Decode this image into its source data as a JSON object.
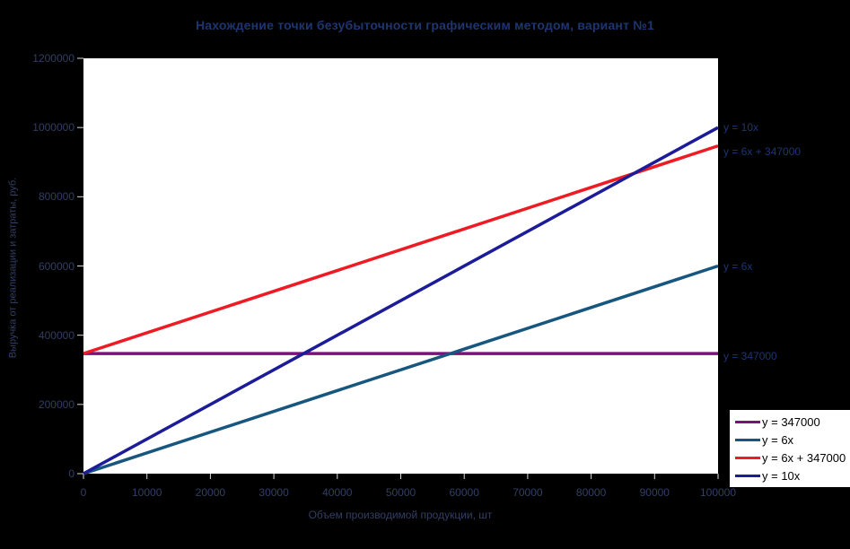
{
  "chart_data": {
    "type": "line",
    "title": "Нахождение точки безубыточности графическим методом, вариант №1",
    "xlabel": "Объем производимой продукции, шт",
    "ylabel": "Выручка от реализации и затраты, руб.",
    "xlim": [
      0,
      100000
    ],
    "ylim": [
      0,
      1200000
    ],
    "x_ticks": [
      0,
      10000,
      20000,
      30000,
      40000,
      50000,
      60000,
      70000,
      80000,
      90000,
      100000
    ],
    "y_ticks": [
      0,
      200000,
      400000,
      600000,
      800000,
      1000000,
      1200000
    ],
    "grid": false,
    "legend_position": "bottom-right",
    "series": [
      {
        "name": "y = 347000",
        "color": "#7d107d",
        "points": [
          [
            0,
            347000
          ],
          [
            100000,
            347000
          ]
        ]
      },
      {
        "name": "y = 6x",
        "color": "#17567e",
        "points": [
          [
            0,
            0
          ],
          [
            100000,
            600000
          ]
        ]
      },
      {
        "name": "y = 6x + 347000",
        "color": "#ed1c24",
        "points": [
          [
            0,
            347000
          ],
          [
            100000,
            947000
          ]
        ]
      },
      {
        "name": "y = 10x",
        "color": "#1c1c99",
        "points": [
          [
            0,
            0
          ],
          [
            100000,
            1000000
          ]
        ]
      }
    ],
    "annotations": [
      {
        "text": "y = 10x",
        "y": 1000000
      },
      {
        "text": "y = 6x + 347000",
        "y": 930000
      },
      {
        "text": "y = 6x",
        "y": 600000
      },
      {
        "text": "y = 347000",
        "y": 340000
      }
    ],
    "legend": {
      "entries": [
        "y = 347000",
        "y = 6x",
        "y = 6x + 347000",
        "y = 10x"
      ]
    }
  },
  "palette": {
    "page_background": "#000000",
    "plot_background": "#ffffff",
    "title_text": "#1d3570",
    "axis_text": "#323f63",
    "tick_mark": "#d9d9d9",
    "legend_text": "#000000",
    "legend_background": "#ffffff"
  }
}
